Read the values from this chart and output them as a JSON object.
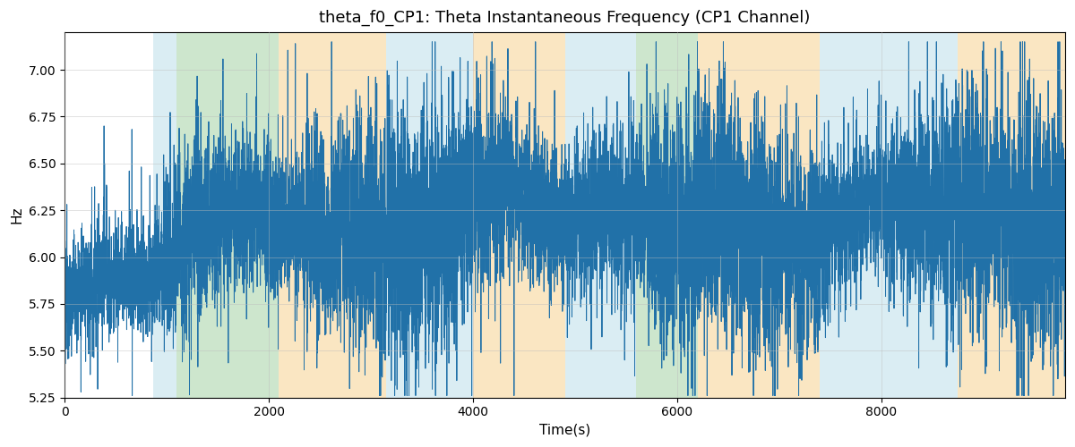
{
  "title": "theta_f0_CP1: Theta Instantaneous Frequency (CP1 Channel)",
  "xlabel": "Time(s)",
  "ylabel": "Hz",
  "xlim": [
    0,
    9800
  ],
  "ylim": [
    5.25,
    7.2
  ],
  "yticks": [
    5.25,
    5.5,
    5.75,
    6.0,
    6.25,
    6.5,
    6.75,
    7.0
  ],
  "xticks": [
    0,
    2000,
    4000,
    6000,
    8000
  ],
  "line_color": "#2171a8",
  "line_width": 0.7,
  "background_color": "#ffffff",
  "grid_color": "#bbbbbb",
  "grid_alpha": 0.6,
  "title_fontsize": 13,
  "label_fontsize": 11,
  "colored_regions": [
    {
      "xmin": 870,
      "xmax": 1100,
      "color": "#add8e6",
      "alpha": 0.45
    },
    {
      "xmin": 1100,
      "xmax": 2100,
      "color": "#90c890",
      "alpha": 0.45
    },
    {
      "xmin": 2100,
      "xmax": 3150,
      "color": "#f5c878",
      "alpha": 0.45
    },
    {
      "xmin": 3150,
      "xmax": 3600,
      "color": "#add8e6",
      "alpha": 0.45
    },
    {
      "xmin": 3600,
      "xmax": 4000,
      "color": "#add8e6",
      "alpha": 0.45
    },
    {
      "xmin": 4000,
      "xmax": 4900,
      "color": "#f5c878",
      "alpha": 0.45
    },
    {
      "xmin": 4900,
      "xmax": 5450,
      "color": "#add8e6",
      "alpha": 0.45
    },
    {
      "xmin": 5450,
      "xmax": 5600,
      "color": "#add8e6",
      "alpha": 0.45
    },
    {
      "xmin": 5600,
      "xmax": 6200,
      "color": "#90c890",
      "alpha": 0.45
    },
    {
      "xmin": 6200,
      "xmax": 7400,
      "color": "#f5c878",
      "alpha": 0.45
    },
    {
      "xmin": 7400,
      "xmax": 7650,
      "color": "#add8e6",
      "alpha": 0.45
    },
    {
      "xmin": 7650,
      "xmax": 8750,
      "color": "#add8e6",
      "alpha": 0.45
    },
    {
      "xmin": 8750,
      "xmax": 9800,
      "color": "#f5c878",
      "alpha": 0.45
    }
  ],
  "seed": 12345,
  "n_points": 9800
}
